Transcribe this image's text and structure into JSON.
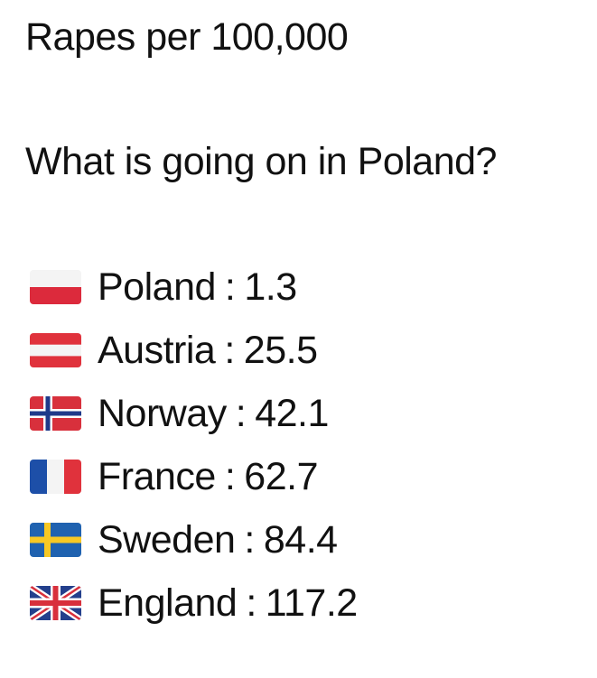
{
  "title": "Rapes per 100,000",
  "question": "What is going on in Poland?",
  "separator": ":",
  "items": [
    {
      "country": "Poland",
      "value": 1.3
    },
    {
      "country": "Austria",
      "value": 25.5
    },
    {
      "country": "Norway",
      "value": 42.1
    },
    {
      "country": "France",
      "value": 62.7
    },
    {
      "country": "Sweden",
      "value": 84.4
    },
    {
      "country": "England",
      "value": 117.2
    }
  ]
}
